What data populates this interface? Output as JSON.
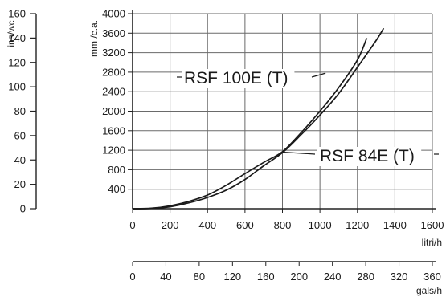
{
  "chart_data": {
    "type": "line",
    "x": {
      "label": "litri/h",
      "range": [
        0,
        1600
      ],
      "ticks": [
        0,
        200,
        400,
        600,
        800,
        1000,
        1200,
        1400,
        1600
      ]
    },
    "y": {
      "label": "mm /c.a.",
      "range": [
        0,
        4000
      ],
      "ticks": [
        400,
        800,
        1200,
        1600,
        2000,
        2400,
        2800,
        3200,
        3600,
        4000
      ]
    },
    "secondary_x": {
      "label": "gals/h",
      "range": [
        0,
        360
      ],
      "ticks": [
        0,
        40,
        80,
        120,
        160,
        200,
        240,
        280,
        320,
        360
      ]
    },
    "secondary_y": {
      "label": "ins/wc",
      "range": [
        0,
        160
      ],
      "ticks": [
        0,
        20,
        40,
        60,
        80,
        100,
        120,
        140,
        160
      ]
    },
    "grid": true,
    "series": [
      {
        "name": "RSF 100E (T)",
        "x": [
          0,
          100,
          200,
          300,
          400,
          500,
          600,
          700,
          800,
          900,
          1000,
          1100,
          1200,
          1250
        ],
        "y": [
          0,
          10,
          60,
          150,
          280,
          480,
          720,
          950,
          1170,
          1560,
          2000,
          2480,
          3050,
          3500
        ]
      },
      {
        "name": "RSF 84E (T)",
        "x": [
          0,
          100,
          200,
          300,
          400,
          500,
          600,
          700,
          800,
          900,
          1000,
          1100,
          1200,
          1300,
          1340
        ],
        "y": [
          0,
          5,
          40,
          120,
          230,
          380,
          600,
          880,
          1150,
          1520,
          1920,
          2360,
          2900,
          3450,
          3700
        ]
      }
    ]
  }
}
